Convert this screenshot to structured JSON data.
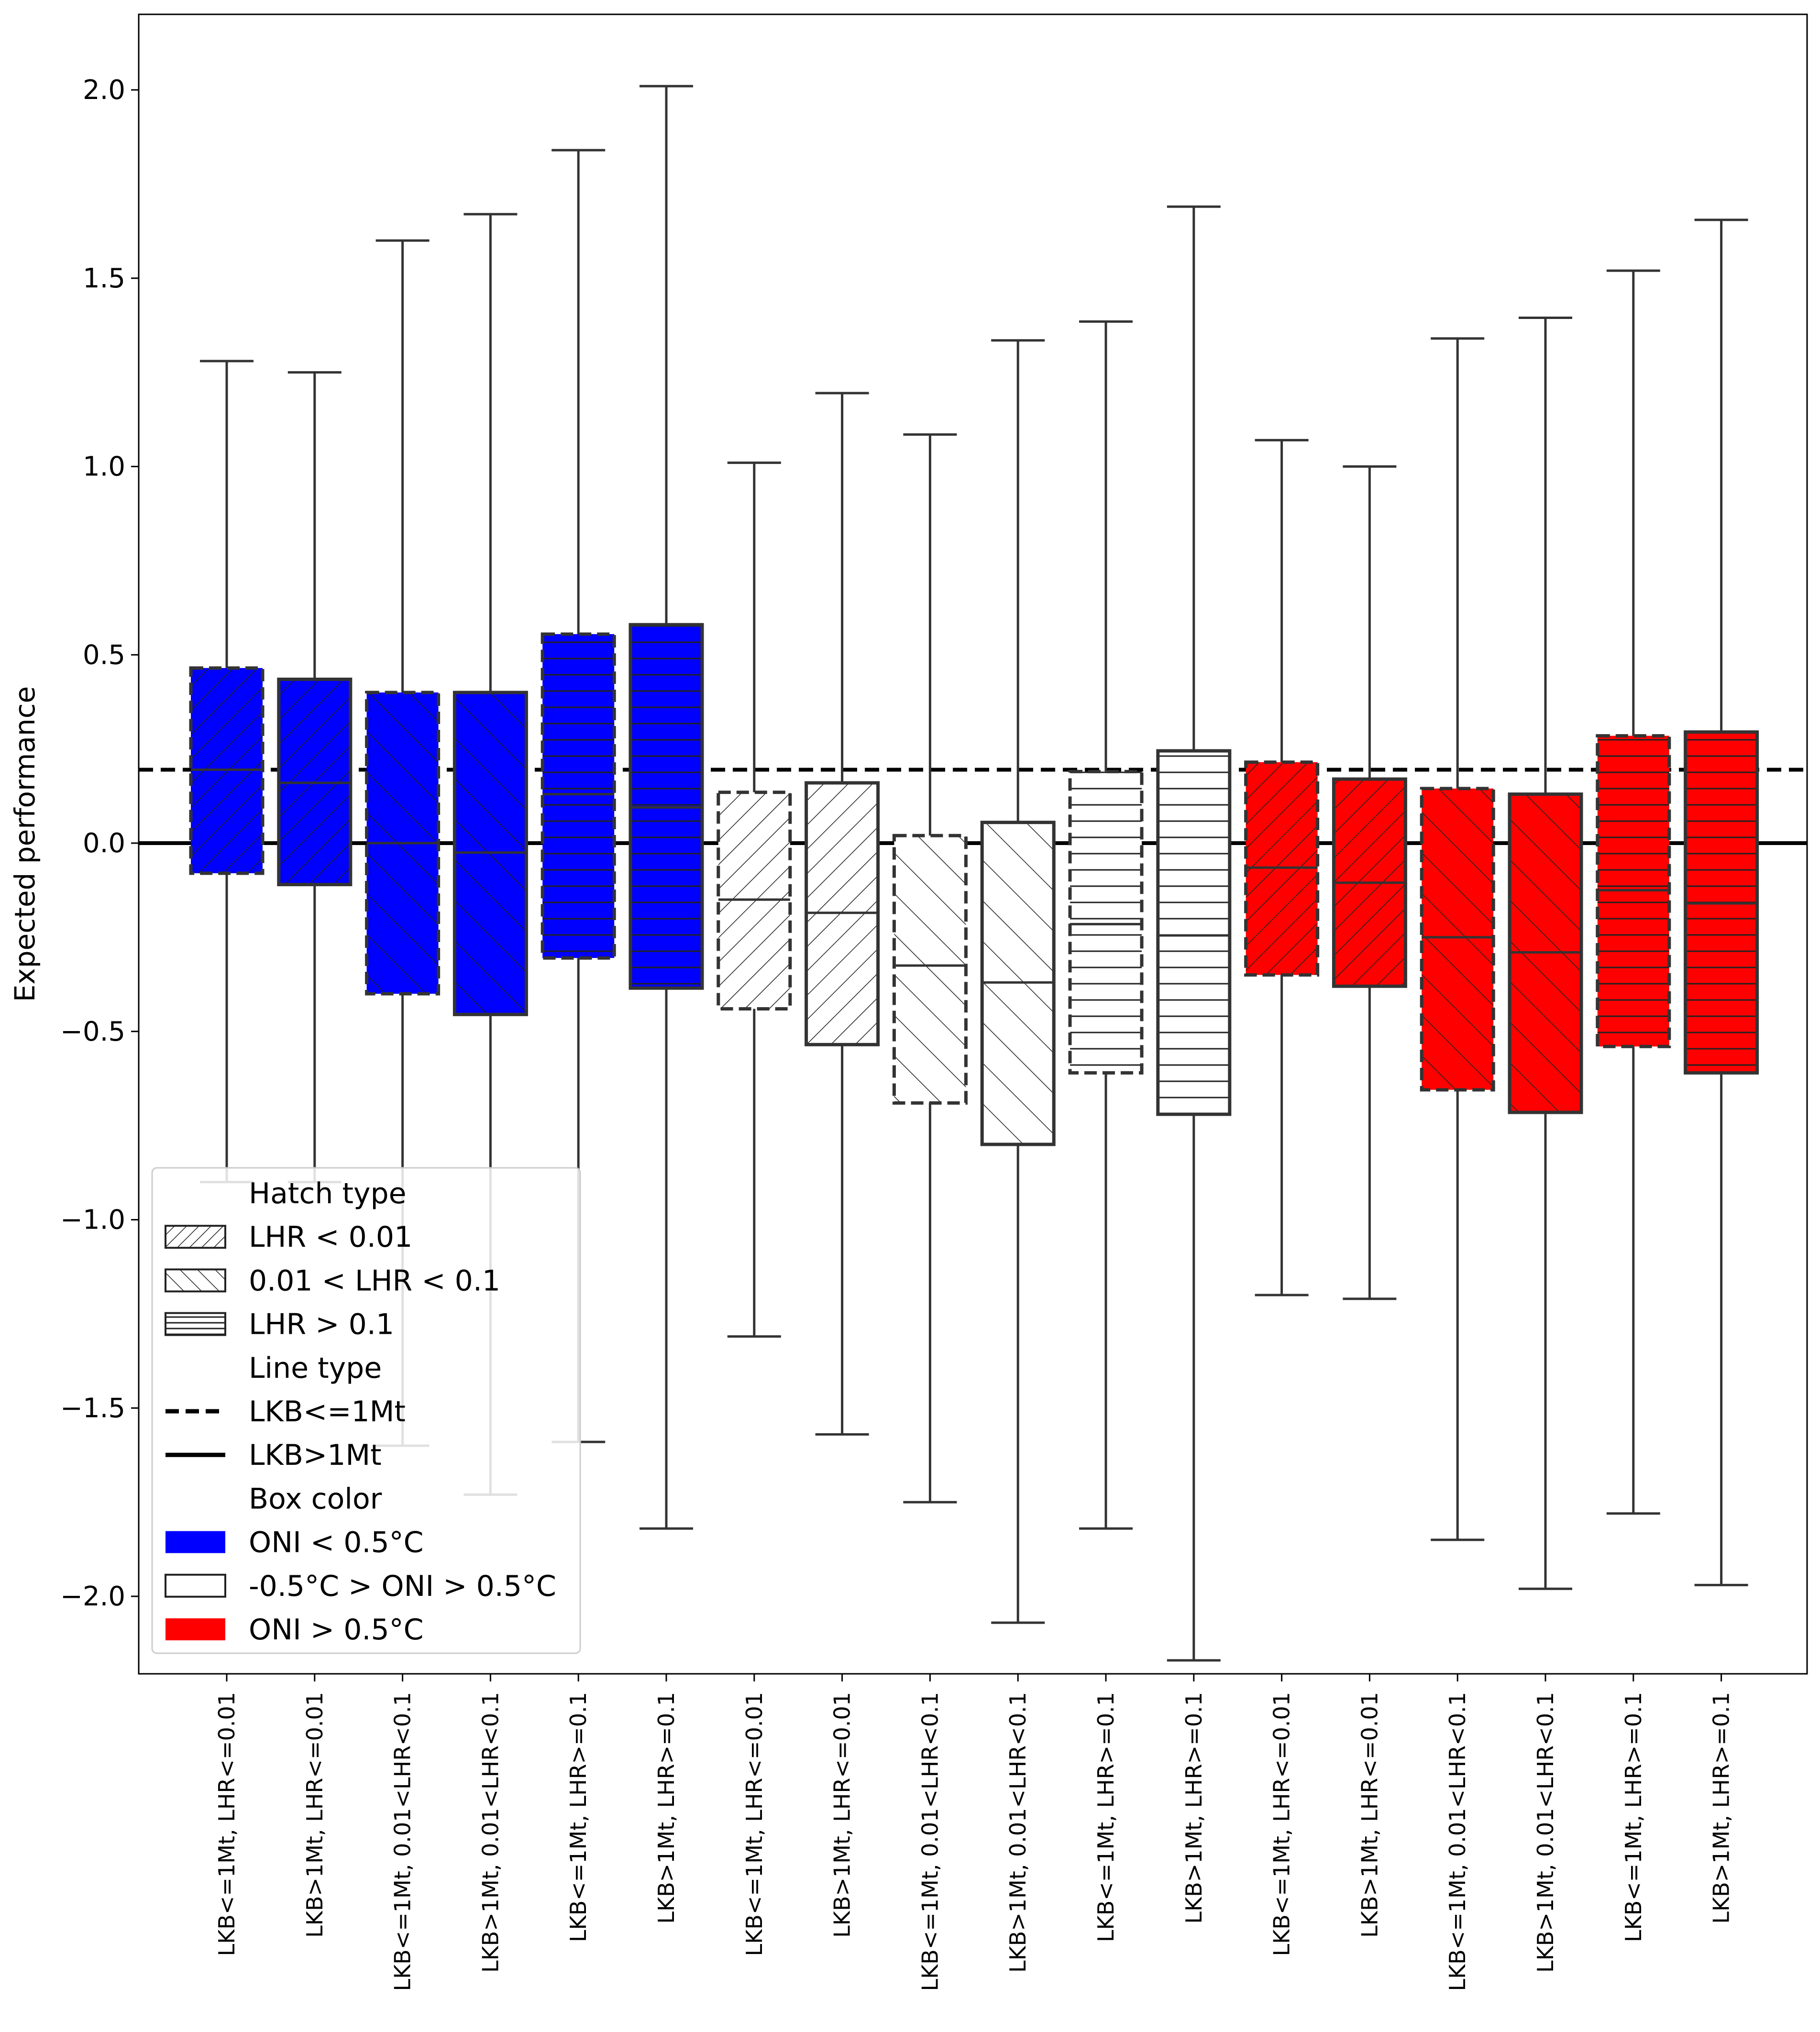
{
  "chart_data": {
    "type": "box",
    "ylabel": "Expected performance",
    "xlabel": "",
    "title": "",
    "ylim": [
      -2.2,
      2.2
    ],
    "yticks": [
      2.0,
      1.5,
      1.0,
      0.5,
      0.0,
      -0.5,
      -1.0,
      -1.5,
      -2.0
    ],
    "ytick_labels": [
      "2.0",
      "1.5",
      "1.0",
      "0.5",
      "0.0",
      "−0.5",
      "−1.0",
      "−1.5",
      "−2.0"
    ],
    "reference_lines": [
      {
        "y": 0.195,
        "style": "dashed"
      },
      {
        "y": 0.0,
        "style": "solid"
      }
    ],
    "colors": {
      "blue": "#0000ff",
      "white": "#ffffff",
      "red": "#ff0000",
      "edge": "#333333"
    },
    "boxes": [
      {
        "label": "LKB<=1Mt, LHR<=0.01",
        "group": "blue",
        "hatch": "fwd",
        "line": "dashed",
        "whislo": -0.9,
        "q1": -0.08,
        "med": 0.195,
        "q3": 0.465,
        "whishi": 1.28
      },
      {
        "label": "LKB>1Mt, LHR<=0.01",
        "group": "blue",
        "hatch": "fwd",
        "line": "solid",
        "whislo": -0.9,
        "q1": -0.11,
        "med": 0.16,
        "q3": 0.435,
        "whishi": 1.25
      },
      {
        "label": "LKB<=1Mt, 0.01<LHR<0.1",
        "group": "blue",
        "hatch": "back",
        "line": "dashed",
        "whislo": -1.6,
        "q1": -0.4,
        "med": 0.0,
        "q3": 0.4,
        "whishi": 1.6
      },
      {
        "label": "LKB>1Mt, 0.01<LHR<0.1",
        "group": "blue",
        "hatch": "back",
        "line": "solid",
        "whislo": -1.73,
        "q1": -0.455,
        "med": -0.025,
        "q3": 0.4,
        "whishi": 1.67
      },
      {
        "label": "LKB<=1Mt, LHR>=0.1",
        "group": "blue",
        "hatch": "horiz",
        "line": "dashed",
        "whislo": -1.59,
        "q1": -0.305,
        "med": 0.13,
        "q3": 0.555,
        "whishi": 1.84
      },
      {
        "label": "LKB>1Mt, LHR>=0.1",
        "group": "blue",
        "hatch": "horiz",
        "line": "solid",
        "whislo": -1.82,
        "q1": -0.385,
        "med": 0.095,
        "q3": 0.58,
        "whishi": 2.01
      },
      {
        "label": "LKB<=1Mt, LHR<=0.01",
        "group": "white",
        "hatch": "fwd",
        "line": "dashed",
        "whislo": -1.31,
        "q1": -0.44,
        "med": -0.15,
        "q3": 0.135,
        "whishi": 1.01
      },
      {
        "label": "LKB>1Mt, LHR<=0.01",
        "group": "white",
        "hatch": "fwd",
        "line": "solid",
        "whislo": -1.57,
        "q1": -0.535,
        "med": -0.185,
        "q3": 0.16,
        "whishi": 1.195
      },
      {
        "label": "LKB<=1Mt, 0.01<LHR<0.1",
        "group": "white",
        "hatch": "back",
        "line": "dashed",
        "whislo": -1.75,
        "q1": -0.69,
        "med": -0.325,
        "q3": 0.02,
        "whishi": 1.085
      },
      {
        "label": "LKB>1Mt, 0.01<LHR<0.1",
        "group": "white",
        "hatch": "back",
        "line": "solid",
        "whislo": -2.07,
        "q1": -0.8,
        "med": -0.37,
        "q3": 0.055,
        "whishi": 1.335
      },
      {
        "label": "LKB<=1Mt, LHR>=0.1",
        "group": "white",
        "hatch": "horiz",
        "line": "dashed",
        "whislo": -1.82,
        "q1": -0.61,
        "med": -0.215,
        "q3": 0.19,
        "whishi": 1.385
      },
      {
        "label": "LKB>1Mt, LHR>=0.1",
        "group": "white",
        "hatch": "horiz",
        "line": "solid",
        "whislo": -2.17,
        "q1": -0.72,
        "med": -0.245,
        "q3": 0.245,
        "whishi": 1.69
      },
      {
        "label": "LKB<=1Mt, LHR<=0.01",
        "group": "red",
        "hatch": "fwd",
        "line": "dashed",
        "whislo": -1.2,
        "q1": -0.35,
        "med": -0.065,
        "q3": 0.215,
        "whishi": 1.07
      },
      {
        "label": "LKB>1Mt, LHR<=0.01",
        "group": "red",
        "hatch": "fwd",
        "line": "solid",
        "whislo": -1.21,
        "q1": -0.38,
        "med": -0.105,
        "q3": 0.17,
        "whishi": 1.0
      },
      {
        "label": "LKB<=1Mt, 0.01<LHR<0.1",
        "group": "red",
        "hatch": "back",
        "line": "dashed",
        "whislo": -1.85,
        "q1": -0.655,
        "med": -0.25,
        "q3": 0.145,
        "whishi": 1.34
      },
      {
        "label": "LKB>1Mt, 0.01<LHR<0.1",
        "group": "red",
        "hatch": "back",
        "line": "solid",
        "whislo": -1.98,
        "q1": -0.715,
        "med": -0.29,
        "q3": 0.13,
        "whishi": 1.395
      },
      {
        "label": "LKB<=1Mt, LHR>=0.1",
        "group": "red",
        "hatch": "horiz",
        "line": "dashed",
        "whislo": -1.78,
        "q1": -0.54,
        "med": -0.125,
        "q3": 0.285,
        "whishi": 1.52
      },
      {
        "label": "LKB>1Mt, LHR>=0.1",
        "group": "red",
        "hatch": "horiz",
        "line": "solid",
        "whislo": -1.97,
        "q1": -0.61,
        "med": -0.16,
        "q3": 0.295,
        "whishi": 1.655
      }
    ],
    "legend": {
      "placement": "lower-left",
      "entries": [
        {
          "kind": "header",
          "text": "Hatch type"
        },
        {
          "kind": "hatch",
          "hatch": "fwd",
          "text": "LHR < 0.01"
        },
        {
          "kind": "hatch",
          "hatch": "back",
          "text": "0.01 < LHR < 0.1"
        },
        {
          "kind": "hatch",
          "hatch": "horiz",
          "text": "LHR > 0.1"
        },
        {
          "kind": "header",
          "text": "Line type"
        },
        {
          "kind": "line",
          "style": "dashed",
          "text": "LKB<=1Mt"
        },
        {
          "kind": "line",
          "style": "solid",
          "text": "LKB>1Mt"
        },
        {
          "kind": "header",
          "text": "Box color"
        },
        {
          "kind": "color",
          "color": "blue",
          "text": "ONI < 0.5°C"
        },
        {
          "kind": "color",
          "color": "white",
          "text": "-0.5°C > ONI > 0.5°C"
        },
        {
          "kind": "color",
          "color": "red",
          "text": "ONI > 0.5°C"
        }
      ]
    }
  }
}
